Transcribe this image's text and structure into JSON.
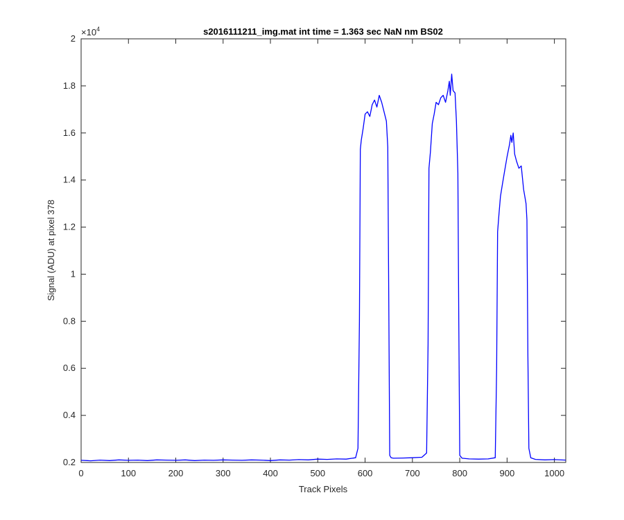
{
  "chart_data": {
    "type": "line",
    "title": "s2016111211_img.mat int time = 1.363 sec  NaN nm BS02",
    "xlabel": "Track Pixels",
    "ylabel": "Signal (ADU) at pixel 378",
    "y_exponent_label": "×10",
    "y_exponent_power": "4",
    "xlim": [
      0,
      1024
    ],
    "ylim": [
      2000,
      20000
    ],
    "y_scale_factor": 10000,
    "x_ticks": [
      0,
      100,
      200,
      300,
      400,
      500,
      600,
      700,
      800,
      900,
      1000
    ],
    "x_tick_labels": [
      "0",
      "100",
      "200",
      "300",
      "400",
      "500",
      "600",
      "700",
      "800",
      "900",
      "1000"
    ],
    "y_ticks": [
      2000,
      4000,
      6000,
      8000,
      10000,
      12000,
      14000,
      16000,
      18000,
      20000
    ],
    "y_tick_labels": [
      "0.2",
      "0.4",
      "0.6",
      "0.8",
      "1",
      "1.2",
      "1.4",
      "1.6",
      "1.8",
      "2"
    ],
    "grid": false,
    "series": [
      {
        "color": "#0000ff",
        "x": [
          0,
          20,
          40,
          60,
          80,
          100,
          120,
          140,
          160,
          180,
          200,
          220,
          240,
          260,
          280,
          300,
          320,
          340,
          360,
          380,
          400,
          420,
          440,
          460,
          480,
          500,
          520,
          540,
          560,
          580,
          585,
          588,
          590,
          592,
          596,
          600,
          605,
          610,
          615,
          620,
          625,
          630,
          635,
          640,
          645,
          648,
          650,
          652,
          655,
          660,
          680,
          700,
          720,
          730,
          733,
          735,
          738,
          742,
          746,
          750,
          755,
          760,
          765,
          770,
          775,
          778,
          780,
          783,
          786,
          790,
          793,
          796,
          798,
          800,
          805,
          820,
          840,
          860,
          875,
          878,
          880,
          883,
          886,
          890,
          895,
          900,
          905,
          908,
          910,
          913,
          916,
          920,
          925,
          930,
          935,
          940,
          942,
          944,
          946,
          950,
          960,
          980,
          1000,
          1024
        ],
        "y": [
          2090,
          2070,
          2100,
          2080,
          2110,
          2090,
          2100,
          2080,
          2110,
          2100,
          2090,
          2110,
          2080,
          2100,
          2090,
          2110,
          2100,
          2090,
          2110,
          2100,
          2080,
          2110,
          2100,
          2120,
          2110,
          2140,
          2130,
          2150,
          2140,
          2200,
          2600,
          8000,
          15300,
          15700,
          16200,
          16800,
          16900,
          16700,
          17200,
          17400,
          17100,
          17600,
          17300,
          16900,
          16500,
          15400,
          9000,
          2300,
          2200,
          2180,
          2190,
          2200,
          2220,
          2400,
          7000,
          14500,
          15200,
          16400,
          16800,
          17300,
          17200,
          17500,
          17600,
          17300,
          17800,
          18200,
          17600,
          18500,
          17800,
          17700,
          16500,
          14300,
          8000,
          2300,
          2180,
          2150,
          2140,
          2150,
          2200,
          6000,
          11800,
          12600,
          13300,
          13800,
          14400,
          15000,
          15500,
          15900,
          15600,
          16000,
          15100,
          14800,
          14500,
          14600,
          13600,
          13000,
          12300,
          6500,
          2600,
          2200,
          2130,
          2110,
          2120,
          2100
        ]
      }
    ]
  }
}
